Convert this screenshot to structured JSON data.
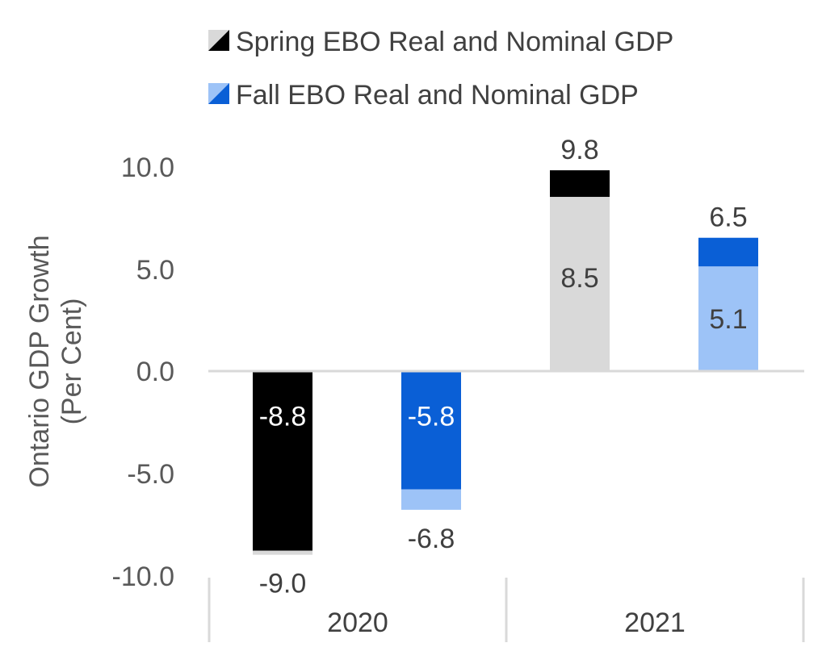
{
  "chart_data": {
    "type": "bar",
    "ylabel_lines": [
      "Ontario GDP Growth",
      "(Per Cent)"
    ],
    "ylim": [
      -10,
      10
    ],
    "yticks": [
      10,
      5,
      0,
      -5,
      -10
    ],
    "ytick_labels": [
      "10.0",
      "5.0",
      "0.0",
      "-5.0",
      "-10.0"
    ],
    "legend_position": "top",
    "legend": [
      {
        "label": "Spring EBO Real and Nominal GDP",
        "color_a": "#d9d9d9",
        "color_b": "#000000"
      },
      {
        "label": "Fall EBO Real and Nominal GDP",
        "color_a": "#9dc3f7",
        "color_b": "#0a5fd6"
      }
    ],
    "categories": [
      "2020",
      "2021"
    ],
    "bars": [
      {
        "category": "2020",
        "name": "Spring EBO",
        "real": -8.8,
        "nominal": -9.0,
        "real_color": "#000000",
        "nominal_color": "#d9d9d9",
        "real_label": "-8.8",
        "nominal_label": "-9.0"
      },
      {
        "category": "2020",
        "name": "Fall EBO",
        "real": -5.8,
        "nominal": -6.8,
        "real_color": "#0a5fd6",
        "nominal_color": "#9dc3f7",
        "real_label": "-5.8",
        "nominal_label": "-6.8"
      },
      {
        "category": "2021",
        "name": "Spring EBO",
        "real": 8.5,
        "nominal": 9.8,
        "real_color": "#d9d9d9",
        "nominal_color": "#000000",
        "real_label": "8.5",
        "nominal_label": "9.8"
      },
      {
        "category": "2021",
        "name": "Fall EBO",
        "real": 5.1,
        "nominal": 6.5,
        "real_color": "#9dc3f7",
        "nominal_color": "#0a5fd6",
        "real_label": "5.1",
        "nominal_label": "6.5"
      }
    ],
    "grid": false
  }
}
